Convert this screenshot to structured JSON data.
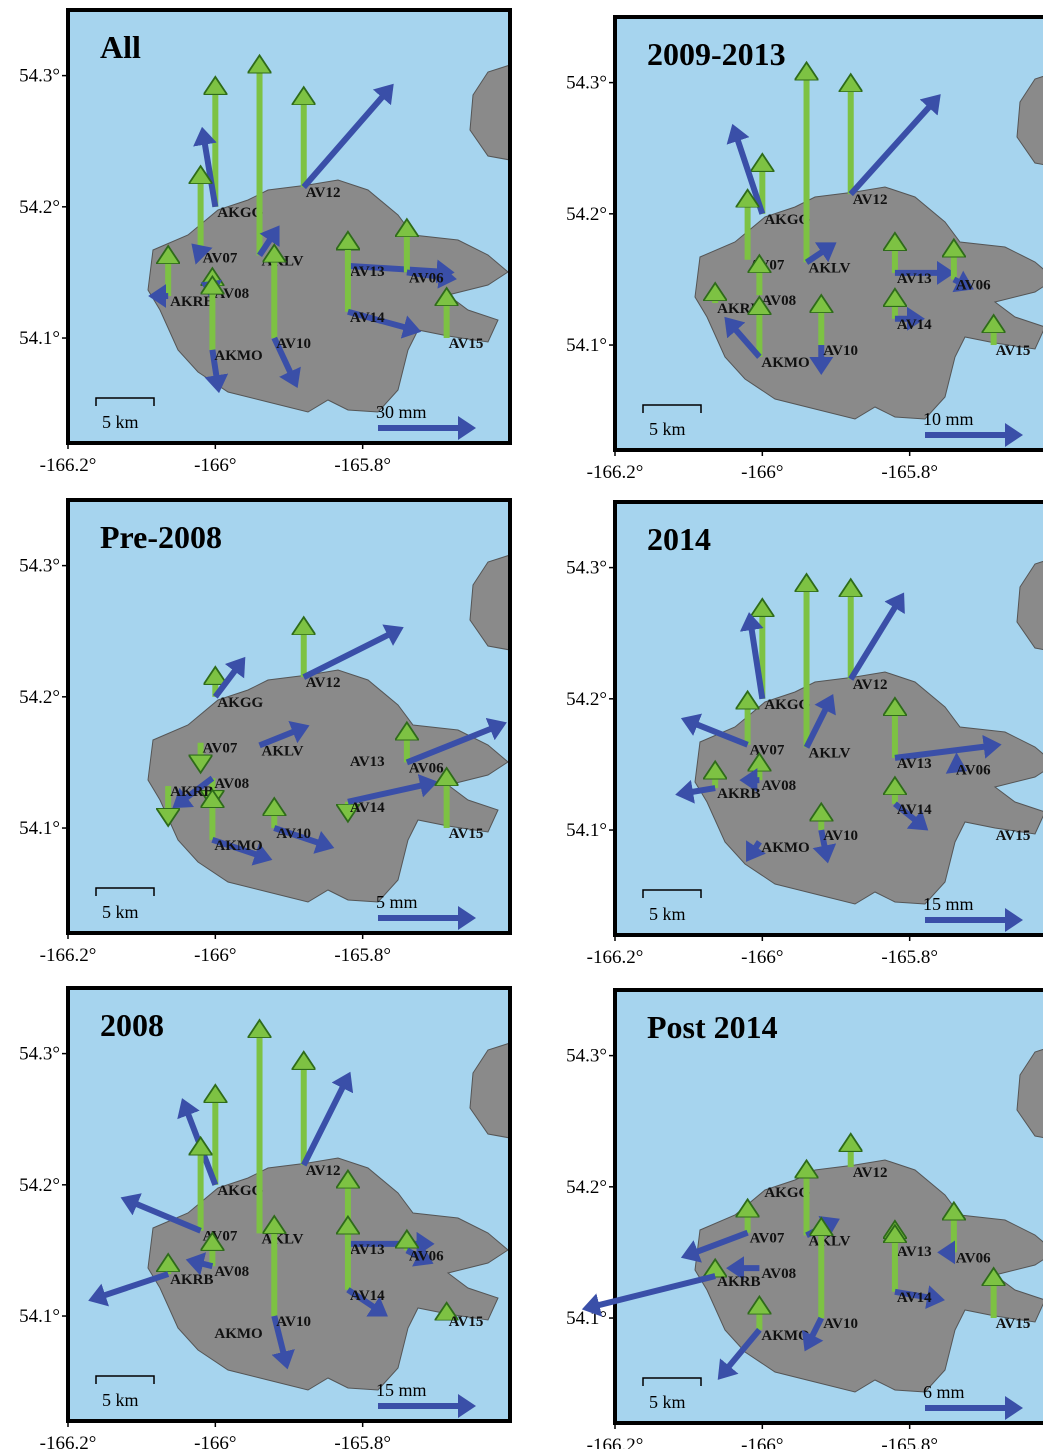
{
  "xlim": [
    -166.2,
    -165.6
  ],
  "ylim": [
    54.02,
    54.35
  ],
  "xticks": [
    {
      "value": -166.2,
      "label": "-166.2°"
    },
    {
      "value": -166,
      "label": "-166°"
    },
    {
      "value": -165.8,
      "label": "-165.8°"
    }
  ],
  "yticks": [
    {
      "value": 54.3,
      "label": "54.3°"
    },
    {
      "value": 54.2,
      "label": "54.2°"
    },
    {
      "value": 54.1,
      "label": "54.1°"
    }
  ],
  "distance_scale_label": "5 km",
  "stations": [
    {
      "name": "AKGG",
      "lon": -166.0,
      "lat": 54.2
    },
    {
      "name": "AV12",
      "lon": -165.88,
      "lat": 54.215
    },
    {
      "name": "AKLV",
      "lon": -165.94,
      "lat": 54.163
    },
    {
      "name": "AV07",
      "lon": -166.02,
      "lat": 54.165
    },
    {
      "name": "AV08",
      "lon": -166.004,
      "lat": 54.138
    },
    {
      "name": "AKRB",
      "lon": -166.064,
      "lat": 54.132
    },
    {
      "name": "AV13",
      "lon": -165.82,
      "lat": 54.155
    },
    {
      "name": "AV06",
      "lon": -165.74,
      "lat": 54.15
    },
    {
      "name": "AV14",
      "lon": -165.82,
      "lat": 54.12
    },
    {
      "name": "AV15",
      "lon": -165.686,
      "lat": 54.1
    },
    {
      "name": "AKMO",
      "lon": -166.004,
      "lat": 54.091
    },
    {
      "name": "AV10",
      "lon": -165.92,
      "lat": 54.1
    }
  ],
  "panels": [
    {
      "title": "All",
      "scale": {
        "value": 30,
        "label": "30 mm"
      },
      "vectors": [
        [
          -4,
          24,
          39
        ],
        [
          27,
          31,
          30
        ],
        [
          6,
          9,
          60
        ],
        [
          -2,
          2,
          26
        ],
        [
          -2,
          1,
          6
        ],
        [
          -6,
          0,
          15
        ],
        [
          32,
          -2,
          10
        ],
        [
          15,
          -2,
          16
        ],
        [
          22,
          -6,
          24
        ],
        [
          0,
          0,
          15
        ],
        [
          2,
          -13,
          22
        ],
        [
          7,
          -15,
          28
        ]
      ]
    },
    {
      "title": "2009-2013",
      "scale": {
        "value": 10,
        "label": "10 mm"
      },
      "vectors": [
        [
          -3,
          9,
          6
        ],
        [
          9,
          10,
          12
        ],
        [
          3,
          2,
          20
        ],
        [
          0,
          0,
          7
        ],
        [
          0,
          0,
          4
        ],
        [
          0,
          0,
          2
        ],
        [
          6,
          0,
          4
        ],
        [
          2,
          -1,
          4
        ],
        [
          3,
          0,
          3
        ],
        [
          0,
          0,
          3
        ],
        [
          -3.5,
          4,
          6
        ],
        [
          0,
          -3,
          5
        ]
      ]
    },
    {
      "title": "Pre-2008",
      "scale": {
        "value": 5,
        "label": "5 mm"
      },
      "vectors": [
        [
          1.5,
          2,
          1.5
        ],
        [
          5,
          2.5,
          3
        ],
        [
          2.5,
          1,
          0
        ],
        [
          0,
          0,
          -1.5
        ],
        [
          -2,
          -1.5,
          -1.5
        ],
        [
          0,
          0,
          -2
        ],
        null,
        [
          5,
          2,
          2
        ],
        [
          4.5,
          1,
          0.2
        ],
        [
          0,
          0,
          3
        ],
        [
          3,
          -1,
          2.5
        ],
        [
          3,
          -1,
          1.5
        ]
      ]
    },
    {
      "title": "2014",
      "scale": {
        "value": 15,
        "label": "15 mm"
      },
      "vectors": [
        [
          -2,
          13,
          15
        ],
        [
          8,
          13,
          15
        ],
        [
          4,
          8,
          26
        ],
        [
          -10,
          4,
          8
        ],
        [
          -3,
          0,
          4
        ],
        [
          -6,
          -1,
          4
        ],
        [
          16,
          2,
          9
        ],
        [
          2,
          -1,
          0
        ],
        [
          5,
          -4,
          4
        ],
        null,
        [
          -2,
          -3,
          0
        ],
        [
          1,
          -5,
          4
        ]
      ]
    },
    {
      "title": "2008",
      "scale": {
        "value": 15,
        "label": "15 mm"
      },
      "vectors": [
        [
          -5,
          13,
          15
        ],
        [
          7,
          14,
          17
        ],
        [
          0,
          0,
          32
        ],
        [
          -12,
          5,
          14
        ],
        [
          -4,
          1,
          5
        ],
        [
          -12,
          -4,
          3
        ],
        [
          13,
          0,
          11
        ],
        [
          4,
          -2,
          3
        ],
        [
          6,
          -4,
          11
        ],
        [
          0,
          0,
          2
        ],
        null,
        [
          2,
          -8,
          15
        ]
      ]
    },
    {
      "title": "Post 2014",
      "scale": {
        "value": 6,
        "label": "6 mm"
      },
      "vectors": [
        null,
        [
          0,
          0,
          2
        ],
        [
          2,
          1,
          4.5
        ],
        [
          -4,
          -1.5,
          2
        ],
        [
          -2,
          0,
          0
        ],
        [
          -8,
          -2,
          1
        ],
        [
          0,
          0,
          1.5
        ],
        [
          -1,
          0,
          3
        ],
        [
          3,
          -0.5,
          4
        ],
        [
          0,
          0,
          3
        ],
        [
          -2.5,
          -3,
          2
        ],
        [
          -1,
          -2,
          6
        ]
      ]
    }
  ]
}
